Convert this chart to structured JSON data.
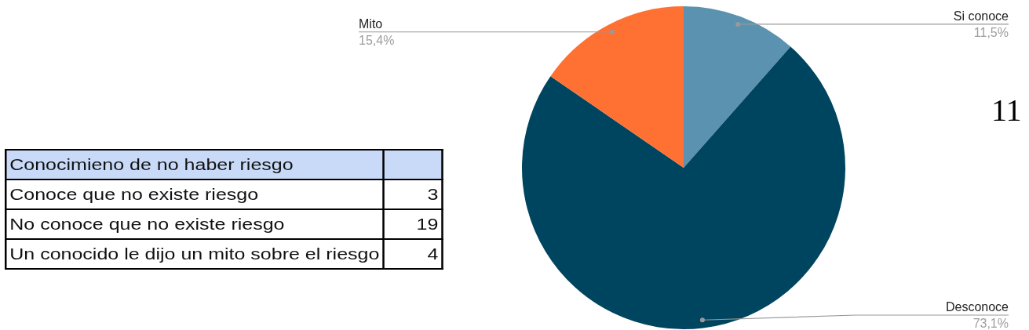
{
  "chart_data": [
    {
      "type": "other",
      "title": "Conocimieno de no haber riesgo",
      "categories": [
        "Conoce que no existe riesgo",
        "No conoce que no existe riesgo",
        "Un conocido le dijo un mito sobre el riesgo"
      ],
      "values": [
        3,
        19,
        4
      ],
      "data_labels": true
    },
    {
      "type": "pie",
      "categories": [
        "Si conoce",
        "Desconoce",
        "Mito"
      ],
      "values": [
        11.5,
        73.1,
        15.4
      ],
      "colors": [
        "#5b92b0",
        "#00455f",
        "#ff7033"
      ],
      "value_labels": [
        "11,5%",
        "73,1%",
        "15,4%"
      ],
      "annotations": [
        "11"
      ]
    }
  ]
}
